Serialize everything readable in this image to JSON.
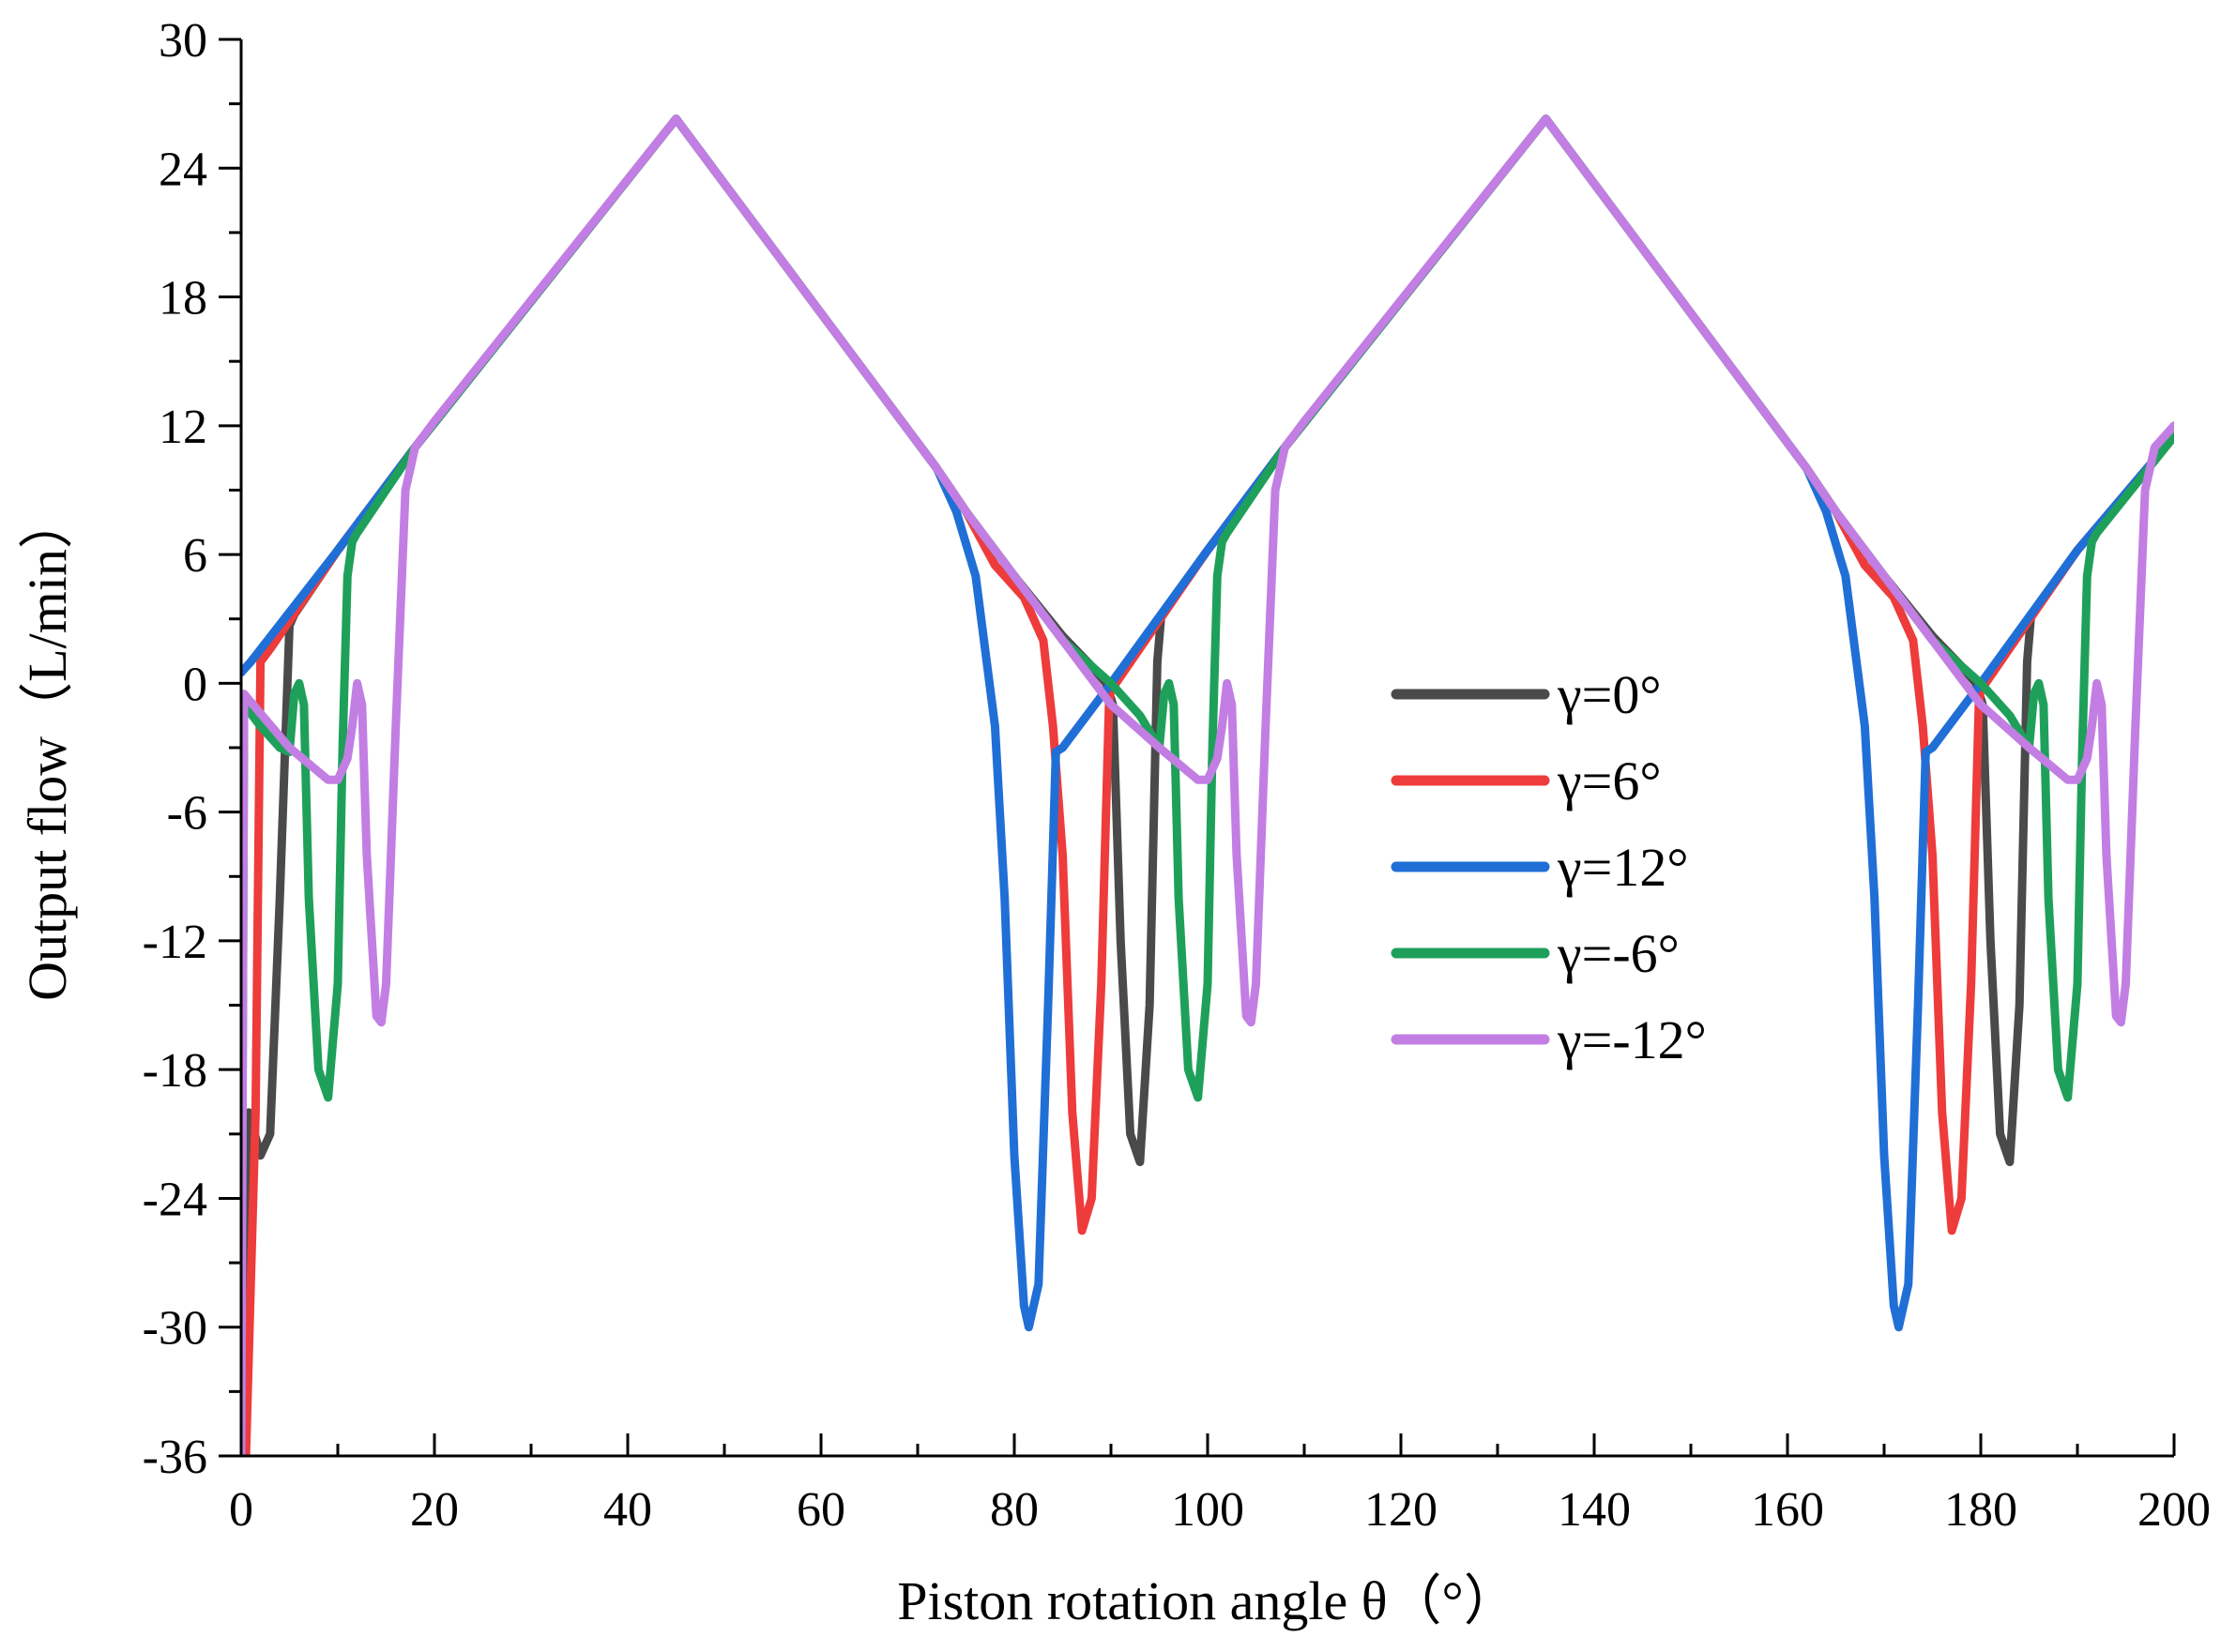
{
  "chart_data": {
    "type": "line",
    "title": "",
    "xlabel": "Piston rotation angle θ（°）",
    "ylabel": "Output flow（L/min）",
    "xlim": [
      0,
      200
    ],
    "ylim": [
      -36,
      30
    ],
    "x_ticks": [
      0,
      20,
      40,
      60,
      80,
      100,
      120,
      140,
      160,
      180,
      200
    ],
    "y_ticks": [
      -36,
      -30,
      -24,
      -18,
      -12,
      -6,
      0,
      6,
      12,
      18,
      24,
      30
    ],
    "x_tick_labels": [
      "0",
      "20",
      "40",
      "60",
      "80",
      "100",
      "120",
      "140",
      "160",
      "180",
      "200"
    ],
    "y_tick_labels": [
      "-36",
      "-30",
      "-24",
      "-18",
      "-12",
      "-6",
      "0",
      "6",
      "12",
      "18",
      "24",
      "30"
    ],
    "grid": false,
    "legend_position": "center-right",
    "series": [
      {
        "name": "γ=0°",
        "color": "#4a4a4a",
        "points": [
          [
            0,
            -36
          ],
          [
            0.8,
            -20
          ],
          [
            2,
            -22
          ],
          [
            3,
            -21
          ],
          [
            4,
            -10
          ],
          [
            5,
            2.7
          ],
          [
            5.5,
            3.2
          ],
          [
            10,
            6.2
          ],
          [
            18,
            11
          ],
          [
            45,
            26.3
          ],
          [
            72,
            10
          ],
          [
            75,
            8
          ],
          [
            80,
            5
          ],
          [
            85,
            2.2
          ],
          [
            88,
            0.8
          ],
          [
            89.5,
            0
          ],
          [
            90.2,
            -1
          ],
          [
            91,
            -12
          ],
          [
            92,
            -21
          ],
          [
            93,
            -22.3
          ],
          [
            94,
            -15
          ],
          [
            94.8,
            1
          ],
          [
            95.2,
            3.2
          ],
          [
            100,
            6.2
          ],
          [
            108,
            11
          ],
          [
            135,
            26.3
          ],
          [
            162,
            10
          ],
          [
            165,
            8
          ],
          [
            170,
            5
          ],
          [
            175,
            2.2
          ],
          [
            178,
            0.8
          ],
          [
            179.5,
            0
          ],
          [
            180.2,
            -1
          ],
          [
            181,
            -12
          ],
          [
            182,
            -21
          ],
          [
            183,
            -22.3
          ],
          [
            184,
            -15
          ],
          [
            184.8,
            1
          ],
          [
            185.2,
            3.2
          ],
          [
            190,
            6.2
          ],
          [
            200,
            11.5
          ]
        ]
      },
      {
        "name": "γ=6°",
        "color": "#ee3b3b",
        "points": [
          [
            0,
            -36
          ],
          [
            0.5,
            -36
          ],
          [
            1.5,
            -20
          ],
          [
            2,
            1
          ],
          [
            3,
            1.6
          ],
          [
            10,
            6.2
          ],
          [
            18,
            11
          ],
          [
            45,
            26.3
          ],
          [
            72,
            10
          ],
          [
            75,
            8
          ],
          [
            78,
            5.5
          ],
          [
            81,
            4
          ],
          [
            83,
            2
          ],
          [
            84,
            -2
          ],
          [
            85,
            -8
          ],
          [
            86,
            -20
          ],
          [
            87,
            -25.5
          ],
          [
            88,
            -24
          ],
          [
            89,
            -14
          ],
          [
            89.8,
            -1
          ],
          [
            90,
            -0.2
          ],
          [
            90.5,
            0
          ],
          [
            100,
            6.2
          ],
          [
            108,
            11
          ],
          [
            135,
            26.3
          ],
          [
            162,
            10
          ],
          [
            165,
            8
          ],
          [
            168,
            5.5
          ],
          [
            171,
            4
          ],
          [
            173,
            2
          ],
          [
            174,
            -2
          ],
          [
            175,
            -8
          ],
          [
            176,
            -20
          ],
          [
            177,
            -25.5
          ],
          [
            178,
            -24
          ],
          [
            179,
            -14
          ],
          [
            179.8,
            -1
          ],
          [
            180,
            -0.2
          ],
          [
            180.5,
            0
          ],
          [
            190,
            6.2
          ],
          [
            200,
            11.5
          ]
        ]
      },
      {
        "name": "γ=12°",
        "color": "#1f6fd6",
        "points": [
          [
            0,
            0.5
          ],
          [
            1,
            1
          ],
          [
            10,
            6.2
          ],
          [
            18,
            11
          ],
          [
            45,
            26.3
          ],
          [
            72,
            10
          ],
          [
            74,
            8
          ],
          [
            76,
            5
          ],
          [
            78,
            -2
          ],
          [
            79,
            -10
          ],
          [
            80,
            -22
          ],
          [
            81,
            -29
          ],
          [
            81.5,
            -30
          ],
          [
            82.5,
            -28
          ],
          [
            83.5,
            -15
          ],
          [
            84.3,
            -3.2
          ],
          [
            85,
            -3
          ],
          [
            90,
            0
          ],
          [
            100,
            6.2
          ],
          [
            108,
            11
          ],
          [
            135,
            26.3
          ],
          [
            162,
            10
          ],
          [
            164,
            8
          ],
          [
            166,
            5
          ],
          [
            168,
            -2
          ],
          [
            169,
            -10
          ],
          [
            170,
            -22
          ],
          [
            171,
            -29
          ],
          [
            171.5,
            -30
          ],
          [
            172.5,
            -28
          ],
          [
            173.5,
            -15
          ],
          [
            174.3,
            -3.2
          ],
          [
            175,
            -3
          ],
          [
            180,
            0
          ],
          [
            190,
            6.2
          ],
          [
            200,
            11.5
          ]
        ]
      },
      {
        "name": "γ=-6°",
        "color": "#1ea05a",
        "points": [
          [
            0,
            -36
          ],
          [
            0.3,
            -1
          ],
          [
            2,
            -2
          ],
          [
            4,
            -3
          ],
          [
            5,
            -3.2
          ],
          [
            5.5,
            -0.5
          ],
          [
            6,
            0
          ],
          [
            6.5,
            -1
          ],
          [
            7,
            -10
          ],
          [
            8,
            -18
          ],
          [
            9,
            -19.3
          ],
          [
            10,
            -14
          ],
          [
            10.5,
            -3
          ],
          [
            11,
            5
          ],
          [
            11.5,
            6.6
          ],
          [
            12,
            7
          ],
          [
            18,
            11
          ],
          [
            45,
            26.3
          ],
          [
            72,
            10
          ],
          [
            75,
            8
          ],
          [
            80,
            5
          ],
          [
            85,
            2
          ],
          [
            90,
            0
          ],
          [
            93,
            -1.5
          ],
          [
            95,
            -3
          ],
          [
            95.5,
            -0.5
          ],
          [
            96,
            0
          ],
          [
            96.5,
            -1
          ],
          [
            97,
            -10
          ],
          [
            98,
            -18
          ],
          [
            99,
            -19.3
          ],
          [
            100,
            -14
          ],
          [
            100.5,
            -3
          ],
          [
            101,
            5
          ],
          [
            101.5,
            6.6
          ],
          [
            102,
            7
          ],
          [
            108,
            11
          ],
          [
            135,
            26.3
          ],
          [
            162,
            10
          ],
          [
            165,
            8
          ],
          [
            170,
            5
          ],
          [
            175,
            2
          ],
          [
            180,
            0
          ],
          [
            183,
            -1.5
          ],
          [
            185,
            -3
          ],
          [
            185.5,
            -0.5
          ],
          [
            186,
            0
          ],
          [
            186.5,
            -1
          ],
          [
            187,
            -10
          ],
          [
            188,
            -18
          ],
          [
            189,
            -19.3
          ],
          [
            190,
            -14
          ],
          [
            190.5,
            -3
          ],
          [
            191,
            5
          ],
          [
            191.5,
            6.6
          ],
          [
            192,
            7
          ],
          [
            200,
            11.5
          ]
        ]
      },
      {
        "name": "γ=-12°",
        "color": "#c27ee3",
        "points": [
          [
            0,
            -36
          ],
          [
            0.3,
            -0.5
          ],
          [
            5,
            -3
          ],
          [
            9,
            -4.5
          ],
          [
            10,
            -4.5
          ],
          [
            11,
            -3.5
          ],
          [
            11.5,
            -2
          ],
          [
            12,
            0
          ],
          [
            12.5,
            -1
          ],
          [
            13,
            -8
          ],
          [
            14,
            -15.5
          ],
          [
            14.5,
            -15.8
          ],
          [
            15,
            -14
          ],
          [
            16,
            -2
          ],
          [
            17,
            9
          ],
          [
            18,
            11
          ],
          [
            20,
            12.2
          ],
          [
            45,
            26.3
          ],
          [
            72,
            10
          ],
          [
            75,
            8
          ],
          [
            80,
            5
          ],
          [
            85,
            2
          ],
          [
            90,
            -1
          ],
          [
            95,
            -3
          ],
          [
            99,
            -4.5
          ],
          [
            100,
            -4.5
          ],
          [
            101,
            -3.5
          ],
          [
            101.5,
            -2
          ],
          [
            102,
            0
          ],
          [
            102.5,
            -1
          ],
          [
            103,
            -8
          ],
          [
            104,
            -15.5
          ],
          [
            104.5,
            -15.8
          ],
          [
            105,
            -14
          ],
          [
            106,
            -2
          ],
          [
            107,
            9
          ],
          [
            108,
            11
          ],
          [
            110,
            12.2
          ],
          [
            135,
            26.3
          ],
          [
            162,
            10
          ],
          [
            165,
            8
          ],
          [
            170,
            5
          ],
          [
            175,
            2
          ],
          [
            180,
            -1
          ],
          [
            185,
            -3
          ],
          [
            189,
            -4.5
          ],
          [
            190,
            -4.5
          ],
          [
            191,
            -3.5
          ],
          [
            191.5,
            -2
          ],
          [
            192,
            0
          ],
          [
            192.5,
            -1
          ],
          [
            193,
            -8
          ],
          [
            194,
            -15.5
          ],
          [
            194.5,
            -15.8
          ],
          [
            195,
            -14
          ],
          [
            196,
            -2
          ],
          [
            197,
            9
          ],
          [
            198,
            11
          ],
          [
            200,
            12
          ]
        ]
      }
    ]
  }
}
